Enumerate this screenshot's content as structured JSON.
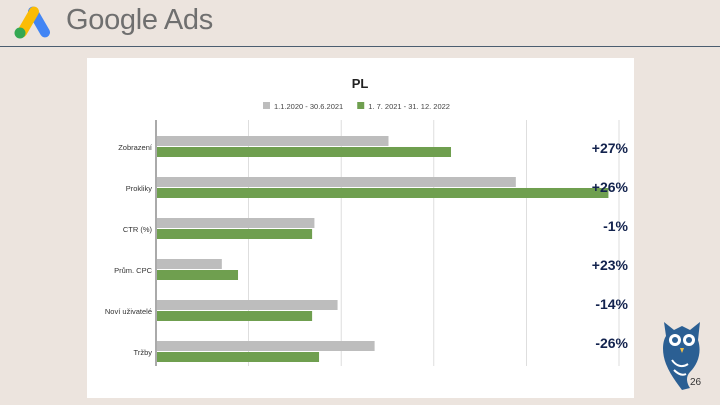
{
  "header": {
    "brand": "Google Ads",
    "logo_icon": "google-ads-logo"
  },
  "chart_data": {
    "type": "bar",
    "orientation": "horizontal",
    "title": "PL",
    "legend_position": "top",
    "grid": true,
    "categories": [
      "Zobrazení",
      "Prokliky",
      "CTR (%)",
      "Prům. CPC",
      "Noví uživatelé",
      "Tržby"
    ],
    "series": [
      {
        "name": "1.1.2020 - 30.6.2021",
        "color": "#bdbdbd",
        "values": [
          100,
          155,
          68,
          28,
          78,
          94
        ]
      },
      {
        "name": "1. 7. 2021 - 31. 12. 2022",
        "color": "#6f9f4f",
        "values": [
          127,
          195,
          67,
          35,
          67,
          70
        ]
      }
    ],
    "xlim": [
      0,
      200
    ]
  },
  "changes": [
    "+27%",
    "+26%",
    "-1%",
    "+23%",
    "-14%",
    "-26%"
  ],
  "footer": {
    "page_number": "26",
    "owl_icon": "owl-logo"
  },
  "colors": {
    "background": "#ece4de",
    "percent_text": "#13234e",
    "rule": "#4b5d70"
  }
}
